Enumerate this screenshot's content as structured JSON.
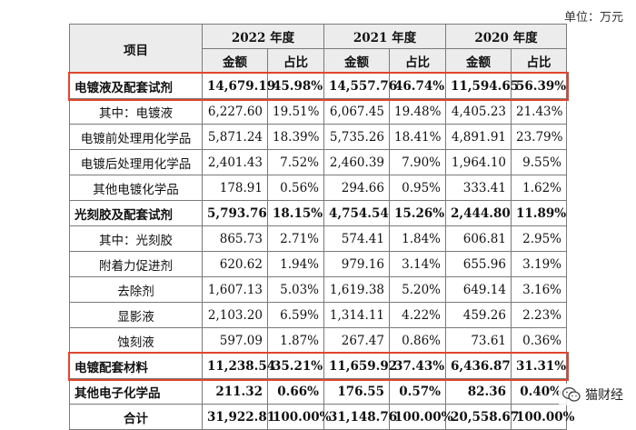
{
  "unit_label": "单位：万元",
  "header": {
    "item": "项目",
    "years": [
      "2022 年度",
      "2021 年度",
      "2020 年度"
    ],
    "amount": "金额",
    "ratio": "占比"
  },
  "rows": [
    {
      "name": "电镀液及配套试剂",
      "bold": true,
      "indent": false,
      "values": [
        "14,679.19",
        "45.98%",
        "14,557.76",
        "46.74%",
        "11,594.65",
        "56.39%"
      ]
    },
    {
      "name": "其中：电镀液",
      "bold": false,
      "indent": true,
      "values": [
        "6,227.60",
        "19.51%",
        "6,067.45",
        "19.48%",
        "4,405.23",
        "21.43%"
      ]
    },
    {
      "name": "电镀前处理用化学品",
      "bold": false,
      "indent": true,
      "values": [
        "5,871.24",
        "18.39%",
        "5,735.26",
        "18.41%",
        "4,891.91",
        "23.79%"
      ]
    },
    {
      "name": "电镀后处理用化学品",
      "bold": false,
      "indent": true,
      "values": [
        "2,401.43",
        "7.52%",
        "2,460.39",
        "7.90%",
        "1,964.10",
        "9.55%"
      ]
    },
    {
      "name": "其他电镀化学品",
      "bold": false,
      "indent": true,
      "values": [
        "178.91",
        "0.56%",
        "294.66",
        "0.95%",
        "333.41",
        "1.62%"
      ]
    },
    {
      "name": "光刻胶及配套试剂",
      "bold": true,
      "indent": false,
      "values": [
        "5,793.76",
        "18.15%",
        "4,754.54",
        "15.26%",
        "2,444.80",
        "11.89%"
      ]
    },
    {
      "name": "其中：光刻胶",
      "bold": false,
      "indent": true,
      "values": [
        "865.73",
        "2.71%",
        "574.41",
        "1.84%",
        "606.81",
        "2.95%"
      ]
    },
    {
      "name": "附着力促进剂",
      "bold": false,
      "indent": true,
      "values": [
        "620.62",
        "1.94%",
        "979.16",
        "3.14%",
        "655.96",
        "3.19%"
      ]
    },
    {
      "name": "去除剂",
      "bold": false,
      "indent": true,
      "values": [
        "1,607.13",
        "5.03%",
        "1,619.38",
        "5.20%",
        "649.14",
        "3.16%"
      ]
    },
    {
      "name": "显影液",
      "bold": false,
      "indent": true,
      "values": [
        "2,103.20",
        "6.59%",
        "1,314.11",
        "4.22%",
        "459.26",
        "2.23%"
      ]
    },
    {
      "name": "蚀刻液",
      "bold": false,
      "indent": true,
      "values": [
        "597.09",
        "1.87%",
        "267.47",
        "0.86%",
        "73.61",
        "0.36%"
      ]
    },
    {
      "name": "电镀配套材料",
      "bold": true,
      "indent": false,
      "values": [
        "11,238.54",
        "35.21%",
        "11,659.92",
        "37.43%",
        "6,436.87",
        "31.31%"
      ]
    },
    {
      "name": "其他电子化学品",
      "bold": true,
      "indent": false,
      "values": [
        "211.32",
        "0.66%",
        "176.55",
        "0.57%",
        "82.36",
        "0.40%"
      ]
    },
    {
      "name": "合计",
      "bold": true,
      "indent": true,
      "values": [
        "31,922.81",
        "100.00%",
        "31,148.76",
        "100.00%",
        "20,558.67",
        "100.00%"
      ]
    }
  ],
  "highlighted_rows": [
    "电镀液及配套试剂",
    "电镀配套材料"
  ],
  "highlight_color": "#e0442c",
  "watermark": {
    "text": "猫财经",
    "icon": "wechat-icon"
  }
}
